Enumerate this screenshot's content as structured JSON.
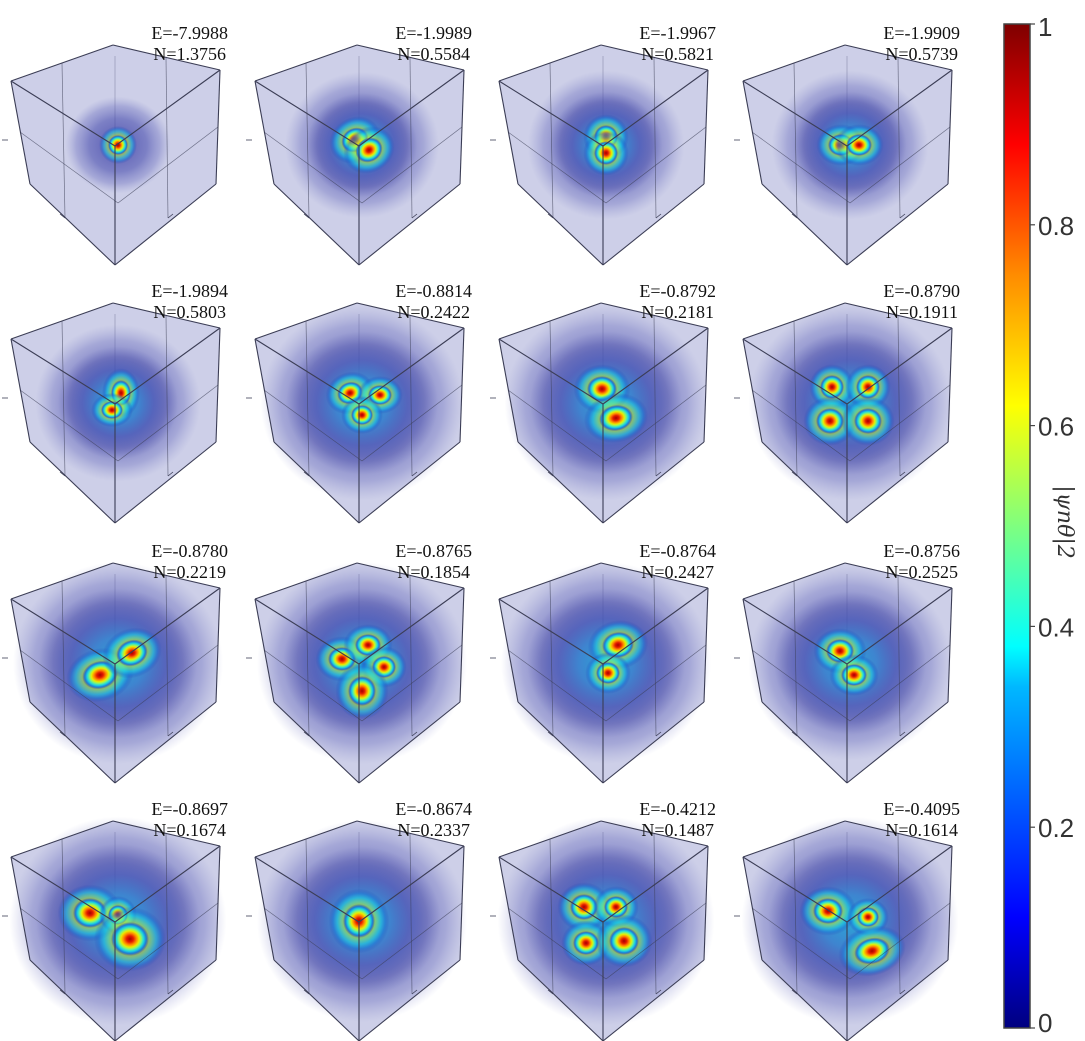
{
  "panels": [
    {
      "E": "E=-7.9988",
      "N": "N=1.3756",
      "lobes": [
        [
          0,
          0,
          10,
          10,
          0
        ]
      ],
      "cloud": 0.15
    },
    {
      "E": "E=-1.9989",
      "N": "N=0.5584",
      "lobes": [
        [
          -7,
          -5,
          14,
          12,
          -30
        ],
        [
          7,
          5,
          14,
          12,
          -30
        ]
      ],
      "cloud": 0.5
    },
    {
      "E": "E=-1.9967",
      "N": "N=0.5821",
      "lobes": [
        [
          0,
          -8,
          12,
          12,
          0
        ],
        [
          0,
          8,
          12,
          12,
          0
        ]
      ],
      "cloud": 0.52
    },
    {
      "E": "E=-1.9909",
      "N": "N=0.5739",
      "lobes": [
        [
          -9,
          0,
          13,
          11,
          0
        ],
        [
          9,
          0,
          13,
          11,
          0
        ]
      ],
      "cloud": 0.52
    },
    {
      "E": "E=-1.9894",
      "N": "N=0.5803",
      "lobes": [
        [
          3,
          -10,
          10,
          13,
          0
        ],
        [
          -6,
          7,
          11,
          9,
          0
        ]
      ],
      "cloud": 0.58
    },
    {
      "E": "E=-0.8814",
      "N": "N=0.2422",
      "lobes": [
        [
          -12,
          -10,
          13,
          11,
          -20
        ],
        [
          18,
          -8,
          12,
          10,
          0
        ],
        [
          0,
          12,
          11,
          10,
          0
        ]
      ],
      "cloud": 0.85
    },
    {
      "E": "E=-0.8792",
      "N": "N=0.2181",
      "lobes": [
        [
          -4,
          -14,
          15,
          13,
          0
        ],
        [
          10,
          15,
          17,
          13,
          -10
        ]
      ],
      "cloud": 0.85
    },
    {
      "E": "E=-0.8790",
      "N": "N=0.1911",
      "lobes": [
        [
          -18,
          -16,
          12,
          12,
          0
        ],
        [
          18,
          -16,
          12,
          12,
          0
        ],
        [
          -20,
          18,
          14,
          13,
          0
        ],
        [
          18,
          18,
          14,
          13,
          0
        ]
      ],
      "cloud": 0.85
    },
    {
      "E": "E=-0.8780",
      "N": "N=0.2219",
      "lobes": [
        [
          -18,
          12,
          18,
          14,
          -15
        ],
        [
          14,
          -10,
          16,
          13,
          -20
        ]
      ],
      "cloud": 0.9
    },
    {
      "E": "E=-0.8765",
      "N": "N=0.1854",
      "lobes": [
        [
          -20,
          -4,
          14,
          12,
          0
        ],
        [
          6,
          -18,
          13,
          11,
          0
        ],
        [
          22,
          4,
          12,
          11,
          0
        ],
        [
          0,
          28,
          14,
          15,
          0
        ]
      ],
      "cloud": 0.9
    },
    {
      "E": "E=-0.8764",
      "N": "N=0.2427",
      "lobes": [
        [
          12,
          -18,
          16,
          13,
          -10
        ],
        [
          2,
          10,
          12,
          11,
          0
        ]
      ],
      "cloud": 0.9
    },
    {
      "E": "E=-0.8756",
      "N": "N=0.2525",
      "lobes": [
        [
          -10,
          -12,
          14,
          12,
          0
        ],
        [
          4,
          12,
          13,
          11,
          0
        ]
      ],
      "cloud": 0.85
    },
    {
      "E": "E=-0.8697",
      "N": "N=0.1674",
      "lobes": [
        [
          -28,
          -8,
          17,
          15,
          0
        ],
        [
          0,
          -6,
          10,
          10,
          0
        ],
        [
          12,
          18,
          19,
          17,
          0
        ]
      ],
      "cloud": 0.95
    },
    {
      "E": "E=-0.8674",
      "N": "N=0.2337",
      "lobes": [
        [
          -3,
          0,
          16,
          17,
          0
        ]
      ],
      "cloud": 0.9
    },
    {
      "E": "E=-0.4212",
      "N": "N=0.1487",
      "lobes": [
        [
          -22,
          -14,
          14,
          13,
          0
        ],
        [
          10,
          -14,
          12,
          11,
          0
        ],
        [
          -20,
          22,
          13,
          12,
          0
        ],
        [
          18,
          20,
          15,
          14,
          0
        ]
      ],
      "cloud": 0.95
    },
    {
      "E": "E=-0.4095",
      "N": "N=0.1614",
      "lobes": [
        [
          -22,
          -10,
          15,
          13,
          0
        ],
        [
          18,
          -4,
          11,
          10,
          0
        ],
        [
          22,
          30,
          18,
          13,
          -15
        ]
      ],
      "cloud": 0.95
    }
  ],
  "colorbar": {
    "ticks": [
      {
        "v": 1,
        "t": "1"
      },
      {
        "v": 0.8,
        "t": "0.8"
      },
      {
        "v": 0.6,
        "t": "0.6"
      },
      {
        "v": 0.4,
        "t": "0.4"
      },
      {
        "v": 0.2,
        "t": "0.2"
      },
      {
        "v": 0,
        "t": "0"
      }
    ],
    "label": "|ψnθ|2"
  }
}
